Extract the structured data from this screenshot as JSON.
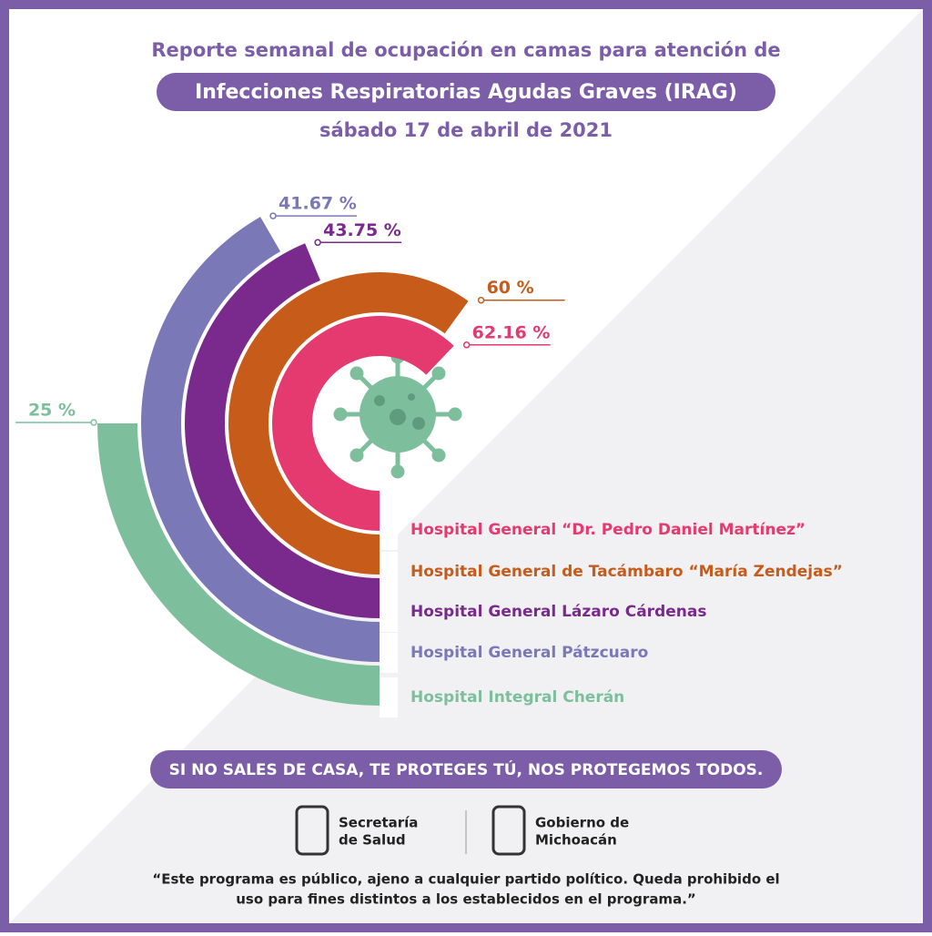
{
  "chart_data": {
    "type": "radial_bar",
    "title": "Reporte semanal de ocupación en camas para atención de",
    "subtitle": "Infecciones Respiratorias Agudas Graves (IRAG)",
    "date": "sábado 17 de abril de 2021",
    "categories": [
      "Hospital General “Dr. Pedro Daniel Martínez”",
      "Hospital General de Tacámbaro “María Zendejas”",
      "Hospital General Lázaro Cárdenas",
      "Hospital General Pátzcuaro",
      "Hospital Integral Cherán"
    ],
    "values": [
      62.16,
      60,
      43.75,
      41.67,
      25
    ],
    "value_labels": [
      "62.16 %",
      "60 %",
      "43.75 %",
      "41.67 %",
      "25 %"
    ],
    "colors": [
      "#e53a6f",
      "#c75b1a",
      "#7a2a8c",
      "#7b78b8",
      "#7dbf9c"
    ],
    "ylim": [
      0,
      100
    ]
  },
  "slogan": "SI NO SALES DE CASA, TE PROTEGES TÚ, NOS PROTEGEMOS TODOS.",
  "logos": [
    [
      "Secretaría",
      "de Salud"
    ],
    [
      "Gobierno de",
      "Michoacán"
    ]
  ],
  "disclaimer": [
    "“Este programa es público, ajeno a cualquier partido político. Queda prohibido el",
    "uso para fines distintos a los establecidos en el programa.”"
  ]
}
